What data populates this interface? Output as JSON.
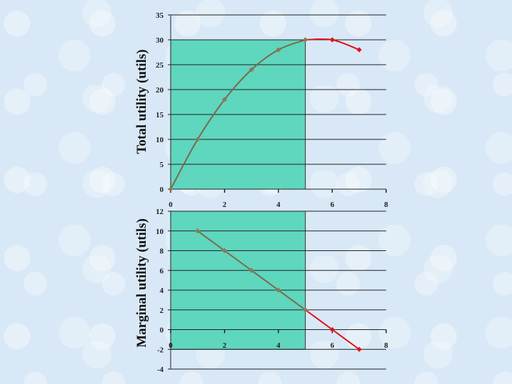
{
  "colors": {
    "shade": "#5fd6be",
    "curve": "#7a6a4a",
    "curve_excess": "#e0101a",
    "point": "#8b7a55",
    "point_excess": "#e0101a",
    "grid": "#222222"
  },
  "chart_data": [
    {
      "type": "line",
      "ylabel": "Total utility (utils)",
      "xlabel": "",
      "x": [
        0,
        1,
        2,
        3,
        4,
        5,
        6,
        7
      ],
      "values": [
        0,
        10,
        18,
        24,
        28,
        30,
        30,
        28
      ],
      "xlim": [
        0,
        8
      ],
      "ylim": [
        0,
        35
      ],
      "xticks": [
        "0",
        "2",
        "4",
        "6",
        "8"
      ],
      "yticks": [
        "0",
        "5",
        "10",
        "15",
        "20",
        "25",
        "30",
        "35"
      ],
      "shaded_region": {
        "x": [
          0,
          5
        ],
        "y": [
          0,
          30
        ]
      },
      "highlight_from_x": 5,
      "grid": "horizontal"
    },
    {
      "type": "line",
      "ylabel": "Marginal utility (utils)",
      "xlabel": "",
      "x": [
        1,
        2,
        3,
        4,
        5,
        6,
        7
      ],
      "values": [
        10,
        8,
        6,
        4,
        2,
        0,
        -2
      ],
      "xlim": [
        0,
        8
      ],
      "ylim": [
        -4,
        12
      ],
      "xticks": [
        "0",
        "2",
        "4",
        "6",
        "8"
      ],
      "yticks": [
        "-4",
        "-2",
        "0",
        "2",
        "4",
        "6",
        "8",
        "10",
        "12"
      ],
      "shaded_region": {
        "x": [
          0,
          5
        ],
        "y": [
          -2,
          12
        ]
      },
      "highlight_from_x": 5,
      "grid": "horizontal"
    }
  ]
}
